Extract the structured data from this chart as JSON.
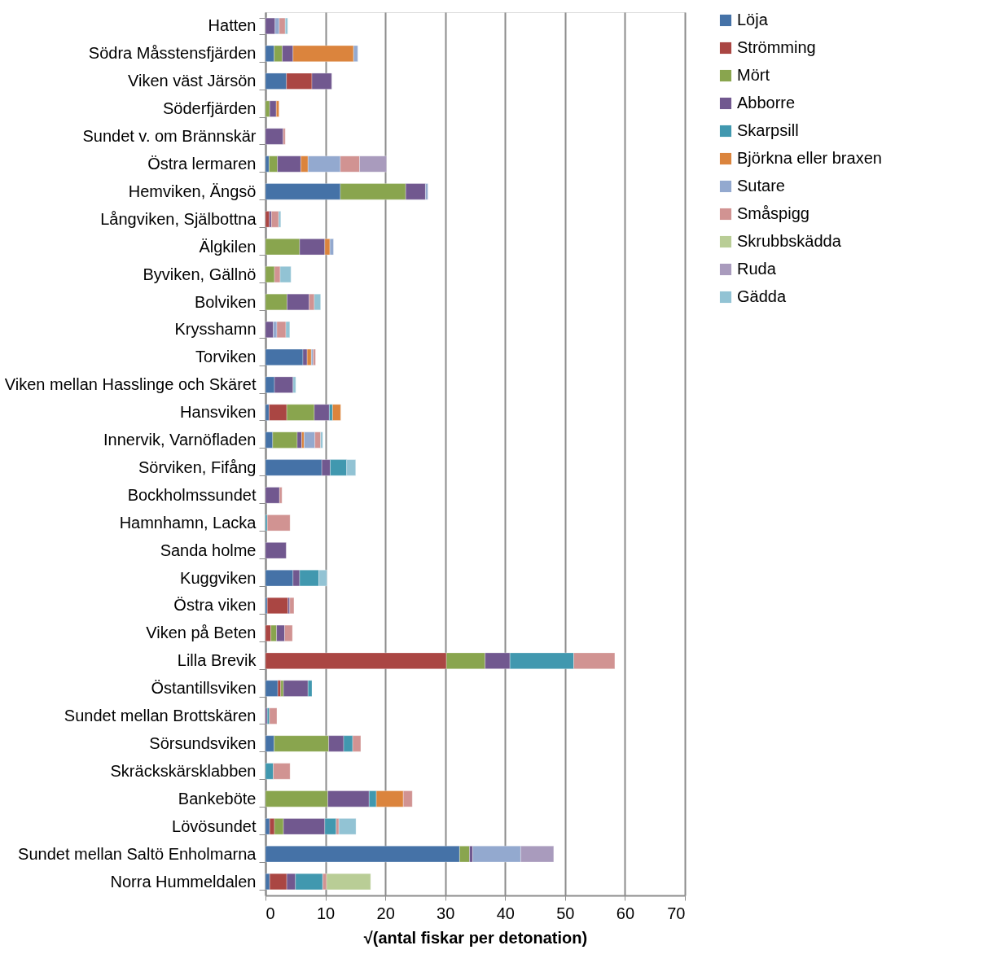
{
  "chart_data": {
    "type": "bar",
    "orientation": "horizontal",
    "stacked": true,
    "xlabel": "√(antal fiskar per detonation)",
    "categories": [
      "Hatten",
      "Södra Måsstensfjärden",
      "Viken väst Järsön",
      "Söderfjärden",
      "Sundet v. om Brännskär",
      "Östra lermaren",
      "Hemviken, Ängsö",
      "Långviken, Själbottna",
      "Älgkilen",
      "Byviken, Gällnö",
      "Bolviken",
      "Krysshamn",
      "Torviken",
      "Viken mellan Hasslinge och Skäret",
      "Hansviken",
      "Innervik, Varnöfladen",
      "Sörviken, Fifång",
      "Bockholmssundet",
      "Hamnhamn, Lacka",
      "Sanda holme",
      "Kuggviken",
      "Östra viken",
      "Viken på Beten",
      "Lilla Brevik",
      "Östantillsviken",
      "Sundet mellan Brottskären",
      "Sörsundsviken",
      "Skräckskärsklabben",
      "Bankeböte",
      "Lövösundet",
      "Sundet mellan Saltö Enholmarna",
      "Norra Hummeldalen"
    ],
    "series": [
      {
        "name": "Löja",
        "color": "#4572a7",
        "values": [
          null,
          1.45,
          3.5,
          null,
          null,
          0.6,
          12.5,
          null,
          null,
          null,
          null,
          null,
          6.25,
          1.5,
          0.6,
          1.2,
          9.4,
          null,
          null,
          null,
          4.6,
          0.3,
          null,
          null,
          2.05,
          null,
          1.45,
          null,
          null,
          0.7,
          32.4,
          0.7
        ]
      },
      {
        "name": "Strömming",
        "color": "#aa4643",
        "values": [
          null,
          null,
          4.25,
          null,
          null,
          null,
          null,
          0.65,
          null,
          null,
          null,
          null,
          null,
          null,
          2.95,
          null,
          null,
          null,
          null,
          null,
          null,
          3.45,
          0.9,
          30.2,
          0.5,
          null,
          null,
          null,
          null,
          0.8,
          null,
          2.85
        ]
      },
      {
        "name": "Mört",
        "color": "#89a54e",
        "values": [
          null,
          1.35,
          null,
          0.7,
          null,
          1.4,
          10.9,
          null,
          5.7,
          1.5,
          3.6,
          null,
          null,
          null,
          4.6,
          4.1,
          null,
          null,
          null,
          null,
          null,
          null,
          0.95,
          6.45,
          0.45,
          null,
          9.1,
          null,
          10.4,
          1.5,
          1.65,
          null
        ]
      },
      {
        "name": "Abborre",
        "color": "#71588f",
        "values": [
          1.6,
          1.8,
          3.3,
          1.1,
          2.95,
          3.9,
          3.3,
          0.35,
          4.2,
          null,
          3.7,
          1.3,
          0.7,
          3.1,
          2.5,
          0.75,
          1.4,
          2.35,
          null,
          3.45,
          1.1,
          0.3,
          1.35,
          4.15,
          4.1,
          0.3,
          2.5,
          null,
          6.9,
          6.9,
          0.55,
          1.45
        ]
      },
      {
        "name": "Skarpsill",
        "color": "#4198af",
        "values": [
          null,
          null,
          null,
          null,
          null,
          null,
          null,
          null,
          null,
          null,
          null,
          null,
          null,
          null,
          0.55,
          null,
          2.75,
          null,
          0.3,
          null,
          3.2,
          null,
          null,
          10.65,
          0.65,
          0.35,
          1.5,
          1.3,
          1.2,
          1.9,
          null,
          4.55
        ]
      },
      {
        "name": "Björkna eller braxen",
        "color": "#db843d",
        "values": [
          null,
          10.1,
          null,
          0.45,
          null,
          1.2,
          null,
          null,
          0.85,
          null,
          null,
          null,
          0.7,
          null,
          1.35,
          0.4,
          null,
          null,
          null,
          null,
          null,
          null,
          null,
          null,
          null,
          null,
          null,
          null,
          4.5,
          null,
          null,
          null
        ]
      },
      {
        "name": "Sutare",
        "color": "#93a9cf",
        "values": [
          0.7,
          0.7,
          null,
          null,
          null,
          5.4,
          0.4,
          null,
          0.6,
          null,
          null,
          0.6,
          0.3,
          null,
          null,
          1.8,
          null,
          null,
          null,
          null,
          null,
          null,
          null,
          null,
          null,
          null,
          null,
          null,
          null,
          null,
          8.0,
          null
        ]
      },
      {
        "name": "Småspigg",
        "color": "#d19392",
        "values": [
          1.0,
          null,
          null,
          null,
          0.35,
          3.2,
          null,
          1.2,
          null,
          0.95,
          0.85,
          1.5,
          0.4,
          null,
          null,
          0.95,
          null,
          0.4,
          3.8,
          null,
          null,
          0.7,
          1.3,
          6.85,
          null,
          1.25,
          1.35,
          2.8,
          1.5,
          0.45,
          null,
          0.65
        ]
      },
      {
        "name": "Skrubbskädda",
        "color": "#b9cd96",
        "values": [
          null,
          null,
          null,
          null,
          null,
          null,
          null,
          null,
          null,
          null,
          null,
          null,
          null,
          null,
          null,
          null,
          null,
          null,
          null,
          null,
          null,
          null,
          null,
          null,
          null,
          null,
          null,
          null,
          null,
          null,
          null,
          7.35
        ]
      },
      {
        "name": "Ruda",
        "color": "#a99bbd",
        "values": [
          null,
          null,
          null,
          null,
          null,
          4.5,
          null,
          null,
          null,
          null,
          null,
          null,
          null,
          null,
          null,
          null,
          null,
          null,
          null,
          null,
          null,
          null,
          null,
          null,
          null,
          null,
          null,
          null,
          null,
          null,
          5.5,
          null
        ]
      },
      {
        "name": "Gädda",
        "color": "#92c3d4",
        "values": [
          0.4,
          null,
          null,
          null,
          null,
          null,
          null,
          0.35,
          null,
          1.8,
          1.05,
          0.65,
          null,
          0.45,
          null,
          0.35,
          1.5,
          null,
          null,
          null,
          1.35,
          null,
          null,
          null,
          null,
          null,
          null,
          null,
          null,
          2.85,
          null,
          null
        ]
      }
    ],
    "xlim": [
      0,
      70
    ],
    "xticks": [
      0,
      10,
      20,
      30,
      40,
      50,
      60,
      70
    ],
    "grid": "x",
    "legend": "right"
  }
}
